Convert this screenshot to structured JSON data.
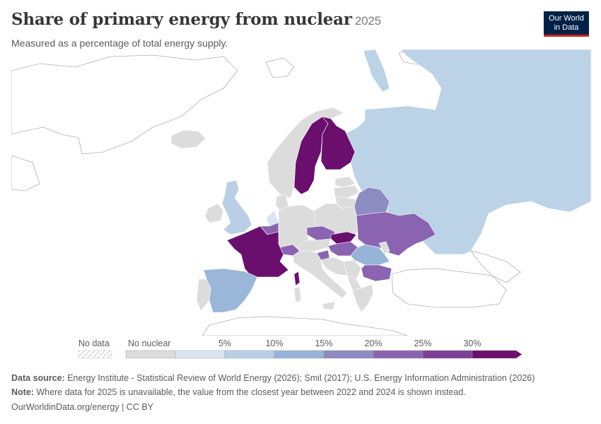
{
  "header": {
    "title": "Share of primary energy from nuclear",
    "year": "2025",
    "subtitle": "Measured as a percentage of total energy supply."
  },
  "logo": {
    "line1": "Our World",
    "line2": "in Data"
  },
  "legend": {
    "no_data_label": "No data",
    "no_nuclear_label": "No nuclear",
    "ticks": [
      "5%",
      "10%",
      "15%",
      "20%",
      "25%",
      "30%"
    ],
    "bins": [
      {
        "color": "#dcdcdc"
      },
      {
        "color": "#d9e5f2"
      },
      {
        "color": "#b8cfe6"
      },
      {
        "color": "#96b4d8"
      },
      {
        "color": "#8c8bc2"
      },
      {
        "color": "#8a64b0"
      },
      {
        "color": "#7d3f98"
      },
      {
        "color": "#6a0f6e"
      }
    ]
  },
  "map_colors": {
    "no_nuclear": "#dcdcdc",
    "france": "#6a0f6e",
    "sweden": "#6a0f6e",
    "finland": "#6a0f6e",
    "slovakia": "#6a0f6e",
    "russia": "#bcd2e7",
    "uk": "#b8cfe6",
    "spain": "#9ab7d9",
    "belgium": "#8a64b0",
    "netherlands": "#d9e5f2",
    "czechia": "#8a64b0",
    "hungary": "#8a64b0",
    "switzerland": "#8a64b0",
    "slovenia": "#8a64b0",
    "ukraine": "#8a64b0",
    "belarus": "#8c8bc2",
    "bulgaria": "#8a64b0",
    "romania": "#96b4d8",
    "ocean": "#ffffff",
    "border": "#ffffff",
    "outline": "#a8a8a8"
  },
  "footer": {
    "source_label": "Data source:",
    "source_text": "Energy Institute - Statistical Review of World Energy (2026); Smil (2017); U.S. Energy Information Administration (2026)",
    "note_label": "Note:",
    "note_text": "Where data for 2025 is unavailable, the value from the closest year between 2022 and 2024 is shown instead.",
    "url_text": "OurWorldinData.org/energy | CC BY"
  }
}
